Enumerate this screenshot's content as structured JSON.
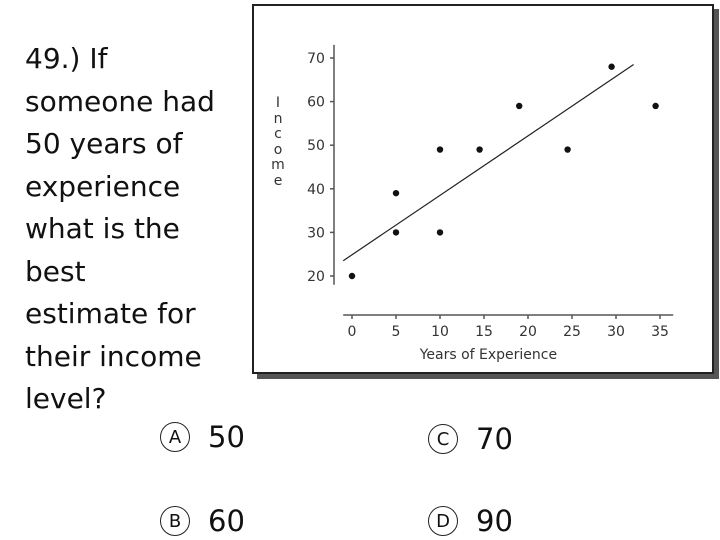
{
  "question": {
    "lines": [
      "49.) If",
      "someone had",
      "50 years of",
      "experience",
      "what is the",
      "best",
      "estimate for",
      "their income",
      "level?"
    ]
  },
  "answers": [
    {
      "letter": "A",
      "value": "50"
    },
    {
      "letter": "B",
      "value": "60"
    },
    {
      "letter": "C",
      "value": "70"
    },
    {
      "letter": "D",
      "value": "90"
    }
  ],
  "chart_data": {
    "type": "scatter",
    "xlabel": "Years of Experience",
    "ylabel": "Income",
    "ylabel_letters": [
      "I",
      "n",
      "c",
      "o",
      "m",
      "e"
    ],
    "x_ticks": [
      0,
      5,
      10,
      15,
      20,
      25,
      30,
      35
    ],
    "y_ticks": [
      20,
      30,
      40,
      50,
      60,
      70
    ],
    "xlim": [
      0,
      35
    ],
    "ylim": [
      20,
      70
    ],
    "grid": false,
    "points": [
      {
        "x": 0,
        "y": 20
      },
      {
        "x": 5,
        "y": 30
      },
      {
        "x": 5,
        "y": 39
      },
      {
        "x": 10,
        "y": 30
      },
      {
        "x": 10,
        "y": 49
      },
      {
        "x": 14.5,
        "y": 49
      },
      {
        "x": 19,
        "y": 59
      },
      {
        "x": 24.5,
        "y": 49
      },
      {
        "x": 29.5,
        "y": 68
      },
      {
        "x": 34.5,
        "y": 59
      }
    ],
    "trend_line": {
      "x1": -1,
      "y1": 23.5,
      "x2": 32,
      "y2": 68.5
    },
    "colors": {
      "points": "#111111",
      "axis": "#555555",
      "line": "#222222"
    }
  }
}
